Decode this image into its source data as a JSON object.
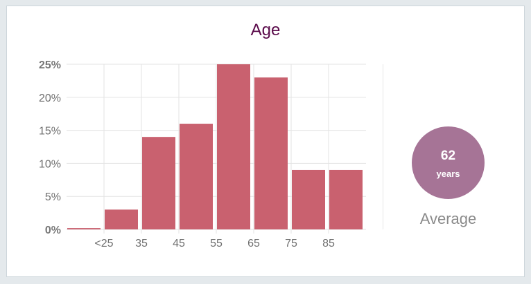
{
  "chart_data": {
    "type": "bar",
    "title": "Age",
    "categories": [
      "",
      "<25",
      "35",
      "45",
      "55",
      "65",
      "75",
      "85"
    ],
    "values": [
      0.2,
      3,
      14,
      16,
      25,
      23,
      9,
      9
    ],
    "ylim": [
      0,
      25
    ],
    "yticks": [
      "0%",
      "5%",
      "10%",
      "15%",
      "20%",
      "25%"
    ],
    "ytick_values": [
      0,
      5,
      10,
      15,
      20,
      25
    ],
    "grid": true,
    "bar_color": "#c9616f"
  },
  "summary": {
    "value": "62",
    "unit": "years",
    "label": "Average",
    "circle_color": "#a67496"
  }
}
